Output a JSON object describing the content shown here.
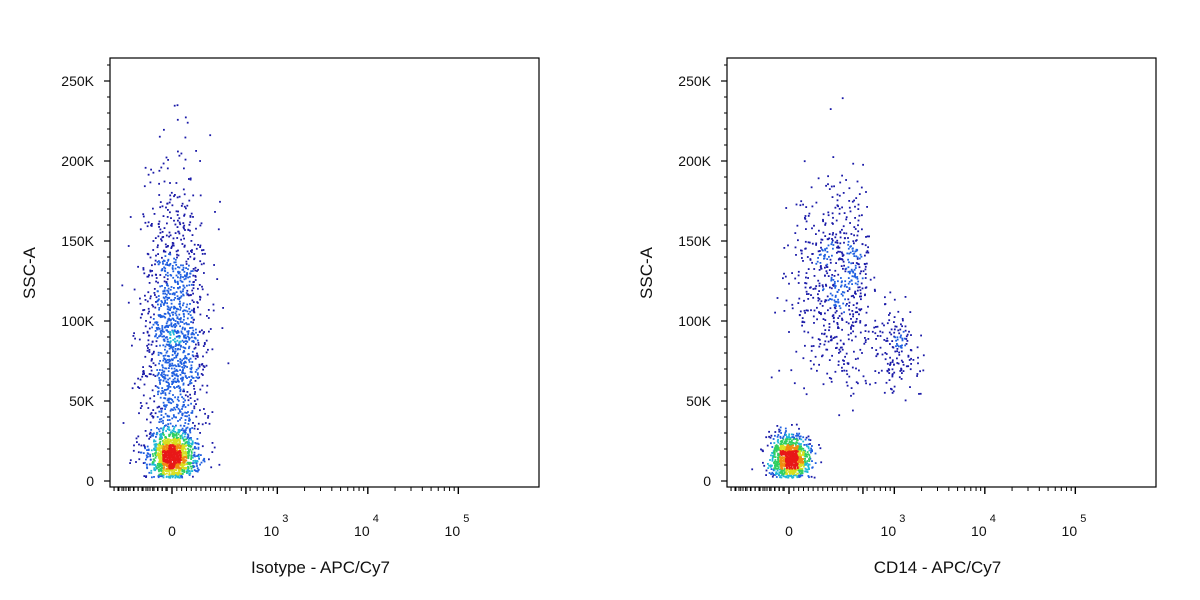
{
  "chart_data": [
    {
      "type": "scatter",
      "style": "pseudocolor density dot plot",
      "xlabel": "Isotype - APC/Cy7",
      "ylabel": "SSC-A",
      "xscale": "biexponential",
      "ylim": [
        0,
        262144
      ],
      "yticks": [
        {
          "value": 0,
          "label": "0"
        },
        {
          "value": 50000,
          "label": "50K"
        },
        {
          "value": 100000,
          "label": "100K"
        },
        {
          "value": 150000,
          "label": "150K"
        },
        {
          "value": 200000,
          "label": "200K"
        },
        {
          "value": 250000,
          "label": "250K"
        }
      ],
      "xticks": [
        {
          "value": 0,
          "label": "0"
        },
        {
          "value": 1000,
          "base": "10",
          "exp": "3"
        },
        {
          "value": 10000,
          "base": "10",
          "exp": "4"
        },
        {
          "value": 100000,
          "base": "10",
          "exp": "5"
        }
      ],
      "populations": [
        {
          "x_center": 0,
          "x_spread": 60,
          "y_center": 16000,
          "y_spread": 8000,
          "count": 1100
        },
        {
          "x_center": 10,
          "x_spread": 85,
          "y_center": 90000,
          "y_spread": 45000,
          "count": 1400
        }
      ],
      "density_colors": [
        "#1a1aa8",
        "#1f5fe0",
        "#1fb8d8",
        "#30d060",
        "#d8e020",
        "#f08c10",
        "#e81818"
      ]
    },
    {
      "type": "scatter",
      "style": "pseudocolor density dot plot",
      "xlabel": "CD14 - APC/Cy7",
      "ylabel": "SSC-A",
      "xscale": "biexponential",
      "ylim": [
        0,
        262144
      ],
      "yticks": [
        {
          "value": 0,
          "label": "0"
        },
        {
          "value": 50000,
          "label": "50K"
        },
        {
          "value": 100000,
          "label": "100K"
        },
        {
          "value": 150000,
          "label": "150K"
        },
        {
          "value": 200000,
          "label": "200K"
        },
        {
          "value": 250000,
          "label": "250K"
        }
      ],
      "xticks": [
        {
          "value": 0,
          "label": "0"
        },
        {
          "value": 1000,
          "base": "10",
          "exp": "3"
        },
        {
          "value": 10000,
          "base": "10",
          "exp": "4"
        },
        {
          "value": 100000,
          "base": "10",
          "exp": "5"
        }
      ],
      "populations": [
        {
          "x_center": 0,
          "x_spread": 50,
          "y_center": 15000,
          "y_spread": 7000,
          "count": 1000
        },
        {
          "x_center": 250,
          "x_spread": 120,
          "y_center": 125000,
          "y_spread": 30000,
          "count": 650
        },
        {
          "x_center": 1000,
          "x_spread": 300,
          "y_center": 80000,
          "y_spread": 15000,
          "count": 170
        }
      ],
      "density_colors": [
        "#1a1aa8",
        "#1f5fe0",
        "#1fb8d8",
        "#30d060",
        "#d8e020",
        "#f08c10",
        "#e81818"
      ]
    }
  ]
}
